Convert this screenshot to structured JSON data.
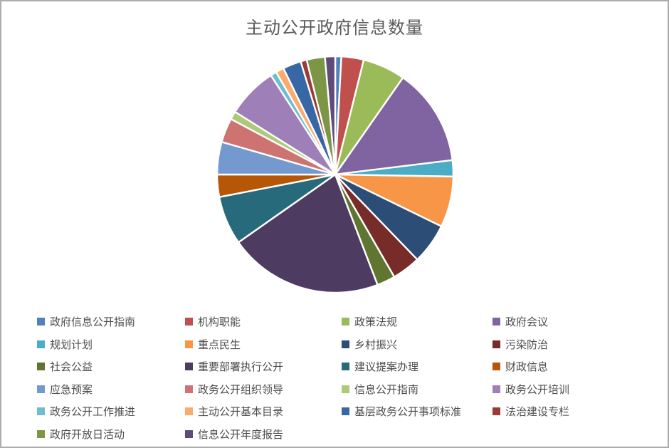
{
  "window": {
    "background": "#FFFFFF",
    "border_color": "#ACACAC"
  },
  "chart_data": {
    "type": "pie",
    "title": "主动公开政府信息数量",
    "title_color": "#595959",
    "legend_position": "bottom",
    "legend_columns": 4,
    "start_angle_deg": 0,
    "direction": "clockwise",
    "slice_border_color": "#FFFFFF",
    "data_labels": "none",
    "series": [
      {
        "label": "政府信息公开指南",
        "color": "#4F81BD",
        "angle_deg": 3,
        "percent": 0.8
      },
      {
        "label": "机构职能",
        "color": "#C0504D",
        "angle_deg": 11,
        "percent": 3.1
      },
      {
        "label": "政策法规",
        "color": "#9BBB59",
        "angle_deg": 21,
        "percent": 5.8
      },
      {
        "label": "政府会议",
        "color": "#8064A2",
        "angle_deg": 48,
        "percent": 13.3
      },
      {
        "label": "规划计划",
        "color": "#4BACC6",
        "angle_deg": 8,
        "percent": 2.2
      },
      {
        "label": "重点民生",
        "color": "#F79646",
        "angle_deg": 25,
        "percent": 6.9
      },
      {
        "label": "乡村振兴",
        "color": "#2C4D75",
        "angle_deg": 20,
        "percent": 5.6
      },
      {
        "label": "污染防治",
        "color": "#772C2A",
        "angle_deg": 14,
        "percent": 3.9
      },
      {
        "label": "社会公益",
        "color": "#5F7530",
        "angle_deg": 9,
        "percent": 2.5
      },
      {
        "label": "重要部署执行公开",
        "color": "#4D3B62",
        "angle_deg": 76,
        "percent": 21.1
      },
      {
        "label": "建议提案办理",
        "color": "#276A7C",
        "angle_deg": 24,
        "percent": 6.7
      },
      {
        "label": "财政信息",
        "color": "#B65708",
        "angle_deg": 11,
        "percent": 3.1
      },
      {
        "label": "应急预案",
        "color": "#7499CE",
        "angle_deg": 16,
        "percent": 4.4
      },
      {
        "label": "政务公开组织领导",
        "color": "#CD7371",
        "angle_deg": 12,
        "percent": 3.3
      },
      {
        "label": "信息公开指南",
        "color": "#AFC97A",
        "angle_deg": 4,
        "percent": 1.1
      },
      {
        "label": "政务公开培训",
        "color": "#9E7FB8",
        "angle_deg": 25,
        "percent": 6.9
      },
      {
        "label": "政务公开工作推进",
        "color": "#6FBDD1",
        "angle_deg": 3,
        "percent": 0.8
      },
      {
        "label": "主动公开基本目录",
        "color": "#F9AC6D",
        "angle_deg": 4,
        "percent": 1.1
      },
      {
        "label": "基层政务公开事项标准",
        "color": "#3767A5",
        "angle_deg": 9,
        "percent": 2.5
      },
      {
        "label": "法治建设专栏",
        "color": "#9A3B38",
        "angle_deg": 3,
        "percent": 0.8
      },
      {
        "label": "政府开放日活动",
        "color": "#7C9646",
        "angle_deg": 9,
        "percent": 2.5
      },
      {
        "label": "信息公开年度报告",
        "color": "#604A7B",
        "angle_deg": 5,
        "percent": 1.4
      }
    ]
  }
}
